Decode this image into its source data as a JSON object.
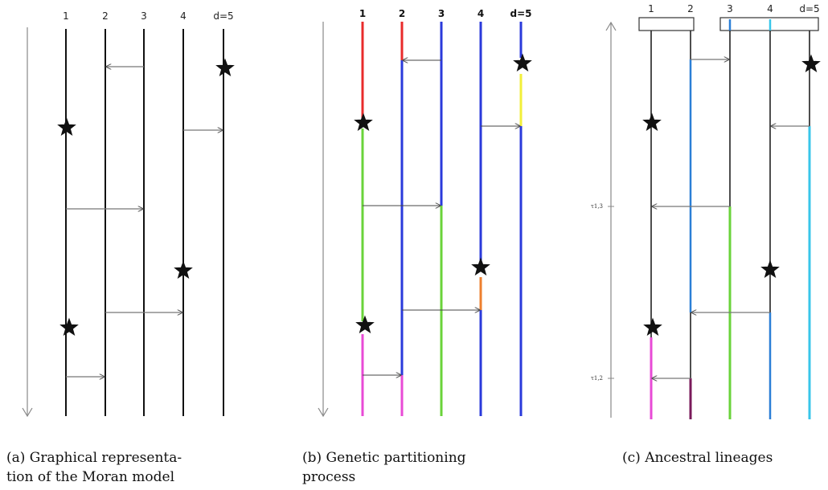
{
  "panels": [
    {
      "caption_line1": "(a)  Graphical  representa-",
      "caption_line2": "tion of the Moran model",
      "line_labels": [
        "1",
        "2",
        "3",
        "4",
        "d=5"
      ]
    },
    {
      "caption_line1": "(b)   Genetic   partitioning",
      "caption_line2": "process",
      "line_labels": [
        "1",
        "2",
        "3",
        "4",
        "d=5"
      ]
    },
    {
      "caption_line1": "(c)  Ancestral lineages",
      "caption_line2": "",
      "line_labels": [
        "1",
        "2",
        "3",
        "4",
        "d=5"
      ],
      "time_labels": [
        "τ1,3",
        "τ1,2"
      ]
    }
  ],
  "colors": {
    "black": "#111111",
    "arrow_gray": "#777777",
    "red": "#e82b2b",
    "blue": "#2a3adb",
    "green": "#6ad33a",
    "magenta": "#e84ad6",
    "yellow": "#f2ef3a",
    "orange": "#ee7f2e",
    "lineage_blue": "#2b7fd6",
    "cyan": "#38c6ea",
    "purple": "#7a1a5a"
  }
}
